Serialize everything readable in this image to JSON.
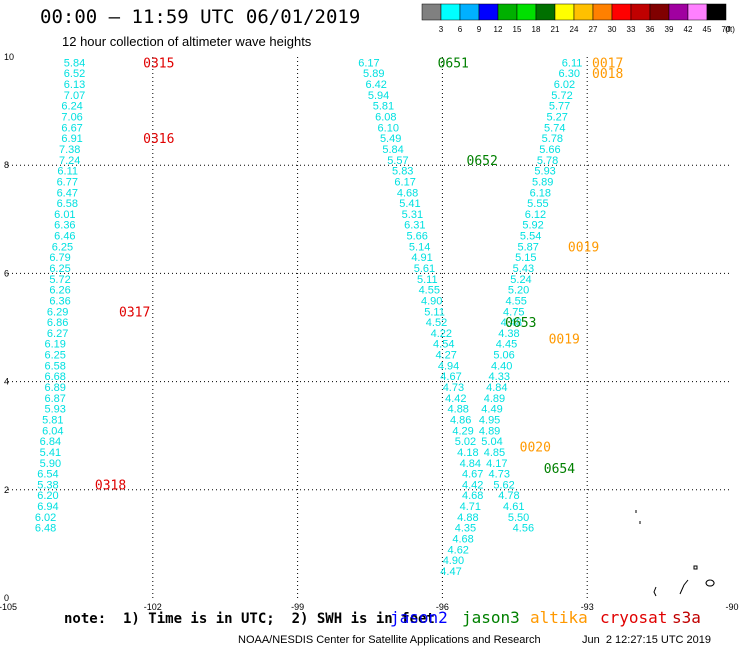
{
  "header": {
    "title": "00:00 – 11:59 UTC 06/01/2019",
    "subtitle": "12 hour collection of altimeter wave heights"
  },
  "colorbar": {
    "colors": [
      "#808080",
      "#00ffff",
      "#00b0ff",
      "#0000ff",
      "#00b000",
      "#00e000",
      "#007000",
      "#ffff00",
      "#ffc000",
      "#ff8000",
      "#ff0000",
      "#c00000",
      "#800000",
      "#a000a0",
      "#ff80ff",
      "#000000"
    ],
    "labels": [
      "3",
      "6",
      "9",
      "12",
      "15",
      "18",
      "21",
      "24",
      "27",
      "30",
      "33",
      "36",
      "39",
      "42",
      "45",
      "70",
      "(ft)"
    ]
  },
  "chart_data": {
    "type": "scatter",
    "xlabel": "",
    "ylabel": "",
    "xlim": [
      -105,
      -90
    ],
    "ylim": [
      0,
      10
    ],
    "xticks": [
      "-105",
      "-102",
      "-99",
      "-96",
      "-93",
      "-90"
    ],
    "yticks": [
      "0",
      "2",
      "4",
      "6",
      "8",
      "10"
    ],
    "grid": true,
    "colors": {
      "swh": "#00e0e0",
      "jason2": "#0000ff",
      "jason3": "#008000",
      "altika": "#ff9900",
      "cryosat": "#e00000",
      "s3a": "#c00000"
    },
    "series": [
      {
        "points": [
          [
            -103.4,
            9.9,
            "5.84"
          ],
          [
            -103.4,
            9.7,
            "6.52"
          ],
          [
            -103.4,
            9.5,
            "6.13"
          ],
          [
            -103.4,
            9.3,
            "7.07"
          ],
          [
            -103.45,
            9.1,
            "6.24"
          ],
          [
            -103.45,
            8.9,
            "7.06"
          ],
          [
            -103.45,
            8.7,
            "6.67"
          ],
          [
            -103.45,
            8.5,
            "6.91"
          ],
          [
            -103.5,
            8.3,
            "7.38"
          ],
          [
            -103.5,
            8.1,
            "7.24"
          ],
          [
            -103.55,
            7.9,
            "6.11"
          ],
          [
            -103.55,
            7.7,
            "6.77"
          ],
          [
            -103.55,
            7.5,
            "6.47"
          ],
          [
            -103.55,
            7.3,
            "6.58"
          ],
          [
            -103.6,
            7.1,
            "6.01"
          ],
          [
            -103.6,
            6.9,
            "6.36"
          ],
          [
            -103.6,
            6.7,
            "6.46"
          ],
          [
            -103.65,
            6.5,
            "6.25"
          ],
          [
            -103.7,
            6.3,
            "6.79"
          ],
          [
            -103.7,
            6.1,
            "6.25"
          ],
          [
            -103.7,
            5.9,
            "5.72"
          ],
          [
            -103.7,
            5.7,
            "6.26"
          ],
          [
            -103.7,
            5.5,
            "6.36"
          ],
          [
            -103.75,
            5.3,
            "6.29"
          ],
          [
            -103.75,
            5.1,
            "6.86"
          ],
          [
            -103.75,
            4.9,
            "6.27"
          ],
          [
            -103.8,
            4.7,
            "6.19"
          ],
          [
            -103.8,
            4.5,
            "6.25"
          ],
          [
            -103.8,
            4.3,
            "6.58"
          ],
          [
            -103.8,
            4.1,
            "6.68"
          ],
          [
            -103.8,
            3.9,
            "6.89"
          ],
          [
            -103.8,
            3.7,
            "6.87"
          ],
          [
            -103.8,
            3.5,
            "5.93"
          ],
          [
            -103.85,
            3.3,
            "5.81"
          ],
          [
            -103.85,
            3.1,
            "6.04"
          ],
          [
            -103.9,
            2.9,
            "6.84"
          ],
          [
            -103.9,
            2.7,
            "5.41"
          ],
          [
            -103.9,
            2.5,
            "5.90"
          ],
          [
            -103.95,
            2.3,
            "6.54"
          ],
          [
            -103.95,
            2.1,
            "5.38"
          ],
          [
            -103.95,
            1.9,
            "6.20"
          ],
          [
            -103.95,
            1.7,
            "6.94"
          ],
          [
            -104.0,
            1.5,
            "6.02"
          ],
          [
            -104.0,
            1.3,
            "6.48"
          ]
        ]
      },
      {
        "points": [
          [
            -97.3,
            9.9,
            "6.17"
          ],
          [
            -97.2,
            9.7,
            "5.89"
          ],
          [
            -97.15,
            9.5,
            "6.42"
          ],
          [
            -97.1,
            9.3,
            "5.94"
          ],
          [
            -97.0,
            9.1,
            "5.81"
          ],
          [
            -96.95,
            8.9,
            "6.08"
          ],
          [
            -96.9,
            8.7,
            "6.10"
          ],
          [
            -96.85,
            8.5,
            "5.49"
          ],
          [
            -96.8,
            8.3,
            "5.84"
          ],
          [
            -96.7,
            8.1,
            "5.57"
          ],
          [
            -96.6,
            7.9,
            "5.83"
          ],
          [
            -96.55,
            7.7,
            "6.17"
          ],
          [
            -96.5,
            7.5,
            "4.68"
          ],
          [
            -96.45,
            7.3,
            "5.41"
          ],
          [
            -96.4,
            7.1,
            "5.31"
          ],
          [
            -96.35,
            6.9,
            "6.31"
          ],
          [
            -96.3,
            6.7,
            "5.66"
          ],
          [
            -96.25,
            6.5,
            "5.14"
          ],
          [
            -96.2,
            6.3,
            "4.91"
          ],
          [
            -96.15,
            6.1,
            "5.61"
          ],
          [
            -96.1,
            5.9,
            "5.11"
          ],
          [
            -96.05,
            5.7,
            "4.55"
          ],
          [
            -96.0,
            5.5,
            "4.90"
          ],
          [
            -95.95,
            5.3,
            "5.11"
          ],
          [
            -95.9,
            5.1,
            "4.52"
          ],
          [
            -95.8,
            4.9,
            "4.22"
          ],
          [
            -95.75,
            4.7,
            "4.54"
          ],
          [
            -95.7,
            4.5,
            "4.27"
          ],
          [
            -95.65,
            4.3,
            "4.94"
          ],
          [
            -95.6,
            4.1,
            "4.67"
          ],
          [
            -95.55,
            3.9,
            "4.73"
          ],
          [
            -95.5,
            3.7,
            "4.42"
          ],
          [
            -95.45,
            3.5,
            "4.88"
          ],
          [
            -95.4,
            3.3,
            "4.86"
          ],
          [
            -95.35,
            3.1,
            "4.29"
          ],
          [
            -95.3,
            2.9,
            "5.02"
          ],
          [
            -95.25,
            2.7,
            "4.18"
          ],
          [
            -95.2,
            2.5,
            "4.84"
          ],
          [
            -95.15,
            2.3,
            "4.67"
          ],
          [
            -95.15,
            2.1,
            "4.42"
          ],
          [
            -95.15,
            1.9,
            "4.68"
          ],
          [
            -95.2,
            1.7,
            "4.71"
          ],
          [
            -95.25,
            1.5,
            "4.88"
          ],
          [
            -95.3,
            1.3,
            "4.35"
          ],
          [
            -95.35,
            1.1,
            "4.68"
          ],
          [
            -95.45,
            0.9,
            "4.62"
          ],
          [
            -95.55,
            0.7,
            "4.90"
          ],
          [
            -95.6,
            0.5,
            "4.47"
          ]
        ]
      },
      {
        "points": [
          [
            -93.1,
            9.9,
            "6.11"
          ],
          [
            -93.15,
            9.7,
            "6.30"
          ],
          [
            -93.25,
            9.5,
            "6.02"
          ],
          [
            -93.3,
            9.3,
            "5.72"
          ],
          [
            -93.35,
            9.1,
            "5.77"
          ],
          [
            -93.4,
            8.9,
            "5.27"
          ],
          [
            -93.45,
            8.7,
            "5.74"
          ],
          [
            -93.5,
            8.5,
            "5.78"
          ],
          [
            -93.55,
            8.3,
            "5.66"
          ],
          [
            -93.6,
            8.1,
            "5.78"
          ],
          [
            -93.65,
            7.9,
            "5.93"
          ],
          [
            -93.7,
            7.7,
            "5.89"
          ],
          [
            -93.75,
            7.5,
            "6.18"
          ],
          [
            -93.8,
            7.3,
            "5.55"
          ],
          [
            -93.85,
            7.1,
            "6.12"
          ],
          [
            -93.9,
            6.9,
            "5.92"
          ],
          [
            -93.95,
            6.7,
            "5.54"
          ],
          [
            -94.0,
            6.5,
            "5.87"
          ],
          [
            -94.05,
            6.3,
            "5.15"
          ],
          [
            -94.1,
            6.1,
            "5.43"
          ],
          [
            -94.15,
            5.9,
            "5.24"
          ],
          [
            -94.2,
            5.7,
            "5.20"
          ],
          [
            -94.25,
            5.5,
            "4.55"
          ],
          [
            -94.3,
            5.3,
            "4.75"
          ],
          [
            -94.35,
            5.1,
            "4.48"
          ],
          [
            -94.4,
            4.9,
            "4.38"
          ],
          [
            -94.45,
            4.7,
            "4.45"
          ],
          [
            -94.5,
            4.5,
            "5.06"
          ],
          [
            -94.55,
            4.3,
            "4.40"
          ],
          [
            -94.6,
            4.1,
            "4.33"
          ],
          [
            -94.65,
            3.9,
            "4.84"
          ],
          [
            -94.7,
            3.7,
            "4.89"
          ],
          [
            -94.75,
            3.5,
            "4.49"
          ],
          [
            -94.8,
            3.3,
            "4.95"
          ],
          [
            -94.8,
            3.1,
            "4.89"
          ],
          [
            -94.75,
            2.9,
            "5.04"
          ],
          [
            -94.7,
            2.7,
            "4.85"
          ],
          [
            -94.65,
            2.5,
            "4.17"
          ],
          [
            -94.6,
            2.3,
            "4.73"
          ],
          [
            -94.5,
            2.1,
            "5.62"
          ],
          [
            -94.4,
            1.9,
            "4.78"
          ],
          [
            -94.3,
            1.7,
            "4.61"
          ],
          [
            -94.2,
            1.5,
            "5.50"
          ],
          [
            -94.1,
            1.3,
            "4.56"
          ]
        ]
      }
    ],
    "annotations": [
      {
        "x": -102.2,
        "y": 9.9,
        "text": "0315",
        "sat": "cryosat"
      },
      {
        "x": -102.2,
        "y": 8.5,
        "text": "0316",
        "sat": "cryosat"
      },
      {
        "x": -102.7,
        "y": 5.3,
        "text": "0317",
        "sat": "cryosat"
      },
      {
        "x": -103.2,
        "y": 2.1,
        "text": "0318",
        "sat": "cryosat"
      },
      {
        "x": -96.1,
        "y": 9.9,
        "text": "0651",
        "sat": "jason3"
      },
      {
        "x": -95.5,
        "y": 8.1,
        "text": "0652",
        "sat": "jason3"
      },
      {
        "x": -94.7,
        "y": 5.1,
        "text": "0653",
        "sat": "jason3"
      },
      {
        "x": -93.9,
        "y": 2.4,
        "text": "0654",
        "sat": "jason3"
      },
      {
        "x": -92.9,
        "y": 9.9,
        "text": "0017",
        "sat": "altika"
      },
      {
        "x": -92.9,
        "y": 9.7,
        "text": "0018",
        "sat": "altika"
      },
      {
        "x": -93.4,
        "y": 6.5,
        "text": "0019",
        "sat": "altika"
      },
      {
        "x": -93.8,
        "y": 4.8,
        "text": "0019",
        "sat": "altika"
      },
      {
        "x": -94.4,
        "y": 2.8,
        "text": "0020",
        "sat": "altika"
      }
    ]
  },
  "legend": {
    "note": "note:  1) Time is in UTC;  2) SWH is in feet",
    "satellites": [
      {
        "name": "jason2",
        "color": "#0000ff"
      },
      {
        "name": "jason3",
        "color": "#008000"
      },
      {
        "name": "altika",
        "color": "#ff9900"
      },
      {
        "name": "cryosat",
        "color": "#e00000"
      },
      {
        "name": "s3a",
        "color": "#c00000"
      }
    ]
  },
  "footer": {
    "credit": "NOAA/NESDIS Center for Satellite Applications and Research",
    "timestamp": "Jun  2 12:27:15 UTC 2019"
  }
}
